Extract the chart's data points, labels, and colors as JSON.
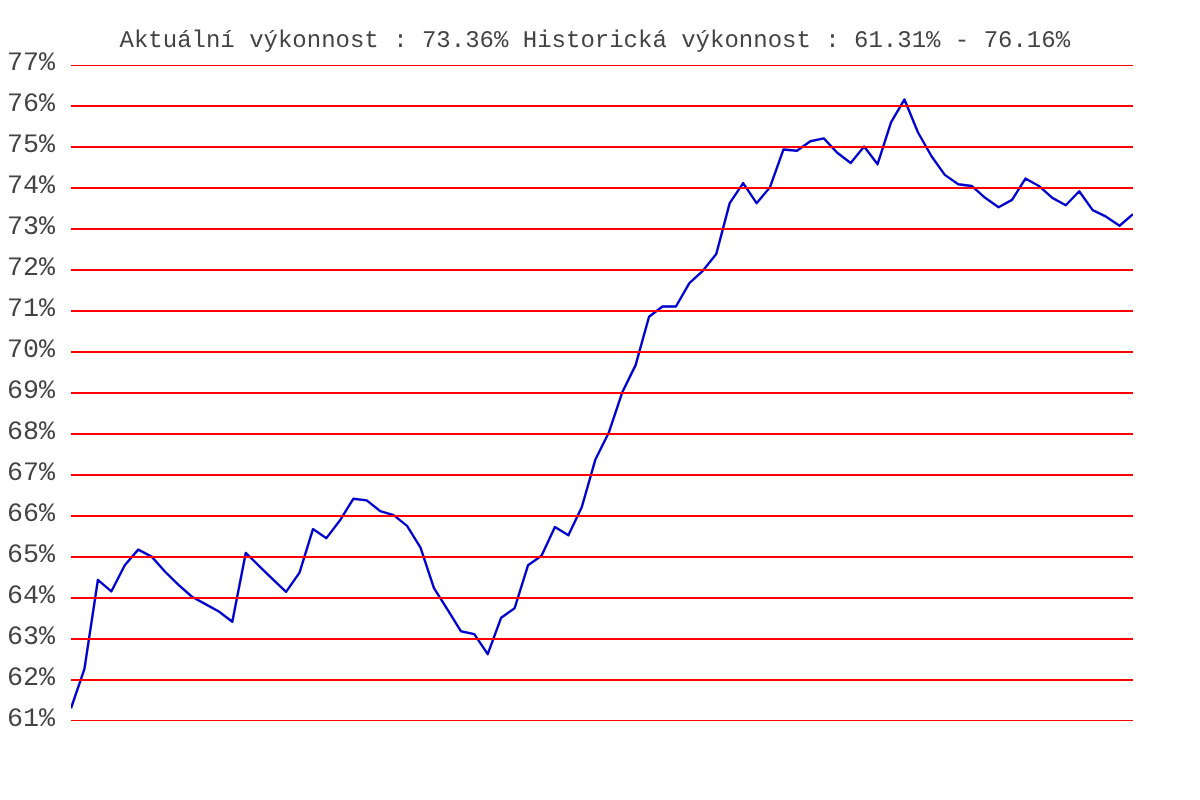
{
  "chart_data": {
    "type": "line",
    "title": "Aktuální výkonnost : 73.36%  Historická výkonnost : 61.31% - 76.16%",
    "categories": [
      null,
      null,
      null,
      null,
      null,
      null,
      null,
      null,
      null,
      null,
      null,
      null,
      null,
      null,
      null,
      null,
      null,
      null,
      null,
      null,
      null,
      null,
      null,
      null,
      null,
      null,
      null,
      null,
      null,
      null,
      null,
      null,
      null,
      null,
      null,
      null,
      null,
      null,
      null,
      null,
      null,
      null,
      null,
      null,
      null,
      null,
      null,
      null,
      null,
      null,
      null,
      null,
      null,
      null,
      null,
      null,
      null,
      null,
      null,
      null,
      null,
      null,
      null,
      null,
      null,
      null,
      null,
      null,
      null,
      null,
      null,
      null,
      null,
      null,
      null,
      null,
      null,
      null,
      null,
      null
    ],
    "series": [
      {
        "color": "#0000cc",
        "values": [
          61.31,
          62.27,
          64.44,
          64.16,
          64.8,
          65.18,
          65.01,
          64.64,
          64.32,
          64.03,
          63.85,
          63.67,
          63.42,
          65.1,
          64.78,
          64.46,
          64.15,
          64.62,
          65.68,
          65.46,
          65.89,
          66.42,
          66.38,
          66.12,
          66.02,
          65.76,
          65.23,
          64.24,
          63.72,
          63.19,
          63.12,
          62.63,
          63.52,
          63.75,
          64.8,
          65.03,
          65.73,
          65.53,
          66.22,
          67.37,
          68.03,
          69.01,
          69.68,
          70.86,
          71.11,
          71.11,
          71.68,
          71.98,
          72.39,
          73.63,
          74.12,
          73.63,
          74.02,
          74.94,
          74.91,
          75.14,
          75.21,
          74.86,
          74.61,
          75.01,
          74.58,
          75.6,
          76.16,
          75.36,
          74.78,
          74.32,
          74.09,
          74.05,
          73.76,
          73.53,
          73.71,
          74.23,
          74.05,
          73.76,
          73.58,
          73.92,
          73.46,
          73.3,
          73.08,
          73.36
        ]
      }
    ],
    "ylim": [
      61,
      77
    ],
    "yticks": [
      {
        "value": 61,
        "label": "61%"
      },
      {
        "value": 62,
        "label": "62%"
      },
      {
        "value": 63,
        "label": "63%"
      },
      {
        "value": 64,
        "label": "64%"
      },
      {
        "value": 65,
        "label": "65%"
      },
      {
        "value": 66,
        "label": "66%"
      },
      {
        "value": 67,
        "label": "67%"
      },
      {
        "value": 68,
        "label": "68%"
      },
      {
        "value": 69,
        "label": "69%"
      },
      {
        "value": 70,
        "label": "70%"
      },
      {
        "value": 71,
        "label": "71%"
      },
      {
        "value": 72,
        "label": "72%"
      },
      {
        "value": 73,
        "label": "73%"
      },
      {
        "value": 74,
        "label": "74%"
      },
      {
        "value": 75,
        "label": "75%"
      },
      {
        "value": 76,
        "label": "76%"
      },
      {
        "value": 77,
        "label": "77%"
      }
    ],
    "grid": "y",
    "tick_labels": "y",
    "marker": "none",
    "line_style": "solid"
  }
}
